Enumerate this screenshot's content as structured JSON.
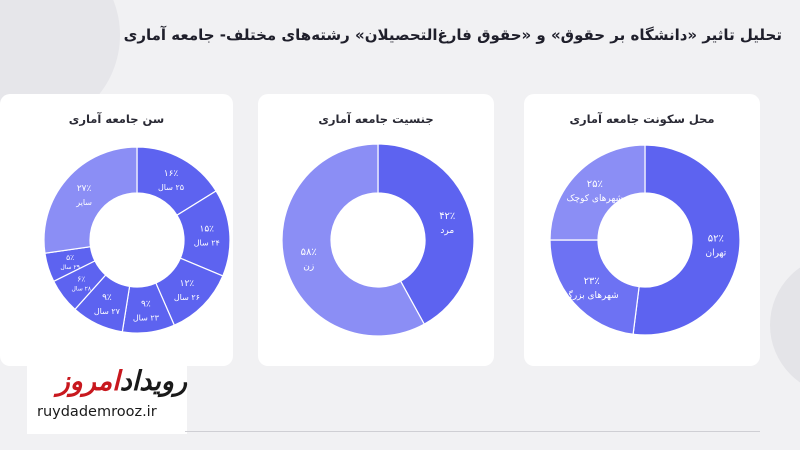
{
  "page_title": "تحلیل تاثیر «دانشگاه بر حقوق» و «حقوق فارغ‌التحصیلان» رشته‌های مختلف- جامعه آماری",
  "logo": {
    "name_part1": "رویداد",
    "name_part2": "امروز",
    "url": "ruydademrooz.ir"
  },
  "chart_data": [
    {
      "type": "pie",
      "title": "محل سکونت جامعه آماری",
      "slices": [
        {
          "name": "تهران",
          "value": 52,
          "label": "۵۲٪"
        },
        {
          "name": "شهرهای بزرگ",
          "value": 23,
          "label": "۲۳٪"
        },
        {
          "name": "شهرهای کوچک",
          "value": 25,
          "label": "۲۵٪"
        }
      ]
    },
    {
      "type": "pie",
      "title": "جنسیت جامعه آماری",
      "slices": [
        {
          "name": "مرد",
          "value": 42,
          "label": "۴۲٪"
        },
        {
          "name": "زن",
          "value": 58,
          "label": "۵۸٪"
        }
      ]
    },
    {
      "type": "pie",
      "title": "سن جامعه آماری",
      "slices": [
        {
          "name": "۲۵ سال",
          "value": 16,
          "label": "۱۶٪"
        },
        {
          "name": "۲۴ سال",
          "value": 15,
          "label": "۱۵٪"
        },
        {
          "name": "۲۶ سال",
          "value": 12,
          "label": "۱۲٪"
        },
        {
          "name": "۲۳ سال",
          "value": 9,
          "label": "۹٪"
        },
        {
          "name": "۲۷ سال",
          "value": 9,
          "label": "۹٪"
        },
        {
          "name": "۲۸ سال",
          "value": 6,
          "label": "۶٪"
        },
        {
          "name": "۲۹ سال",
          "value": 5,
          "label": "۵٪"
        },
        {
          "name": "سایر",
          "value": 27,
          "label": "۲۷٪"
        }
      ]
    }
  ],
  "colors": {
    "dark": "#5d63f0",
    "medium": "#6d72f3",
    "light": "#8b8ef5",
    "background": "#f1f1f3",
    "card": "#ffffff"
  }
}
